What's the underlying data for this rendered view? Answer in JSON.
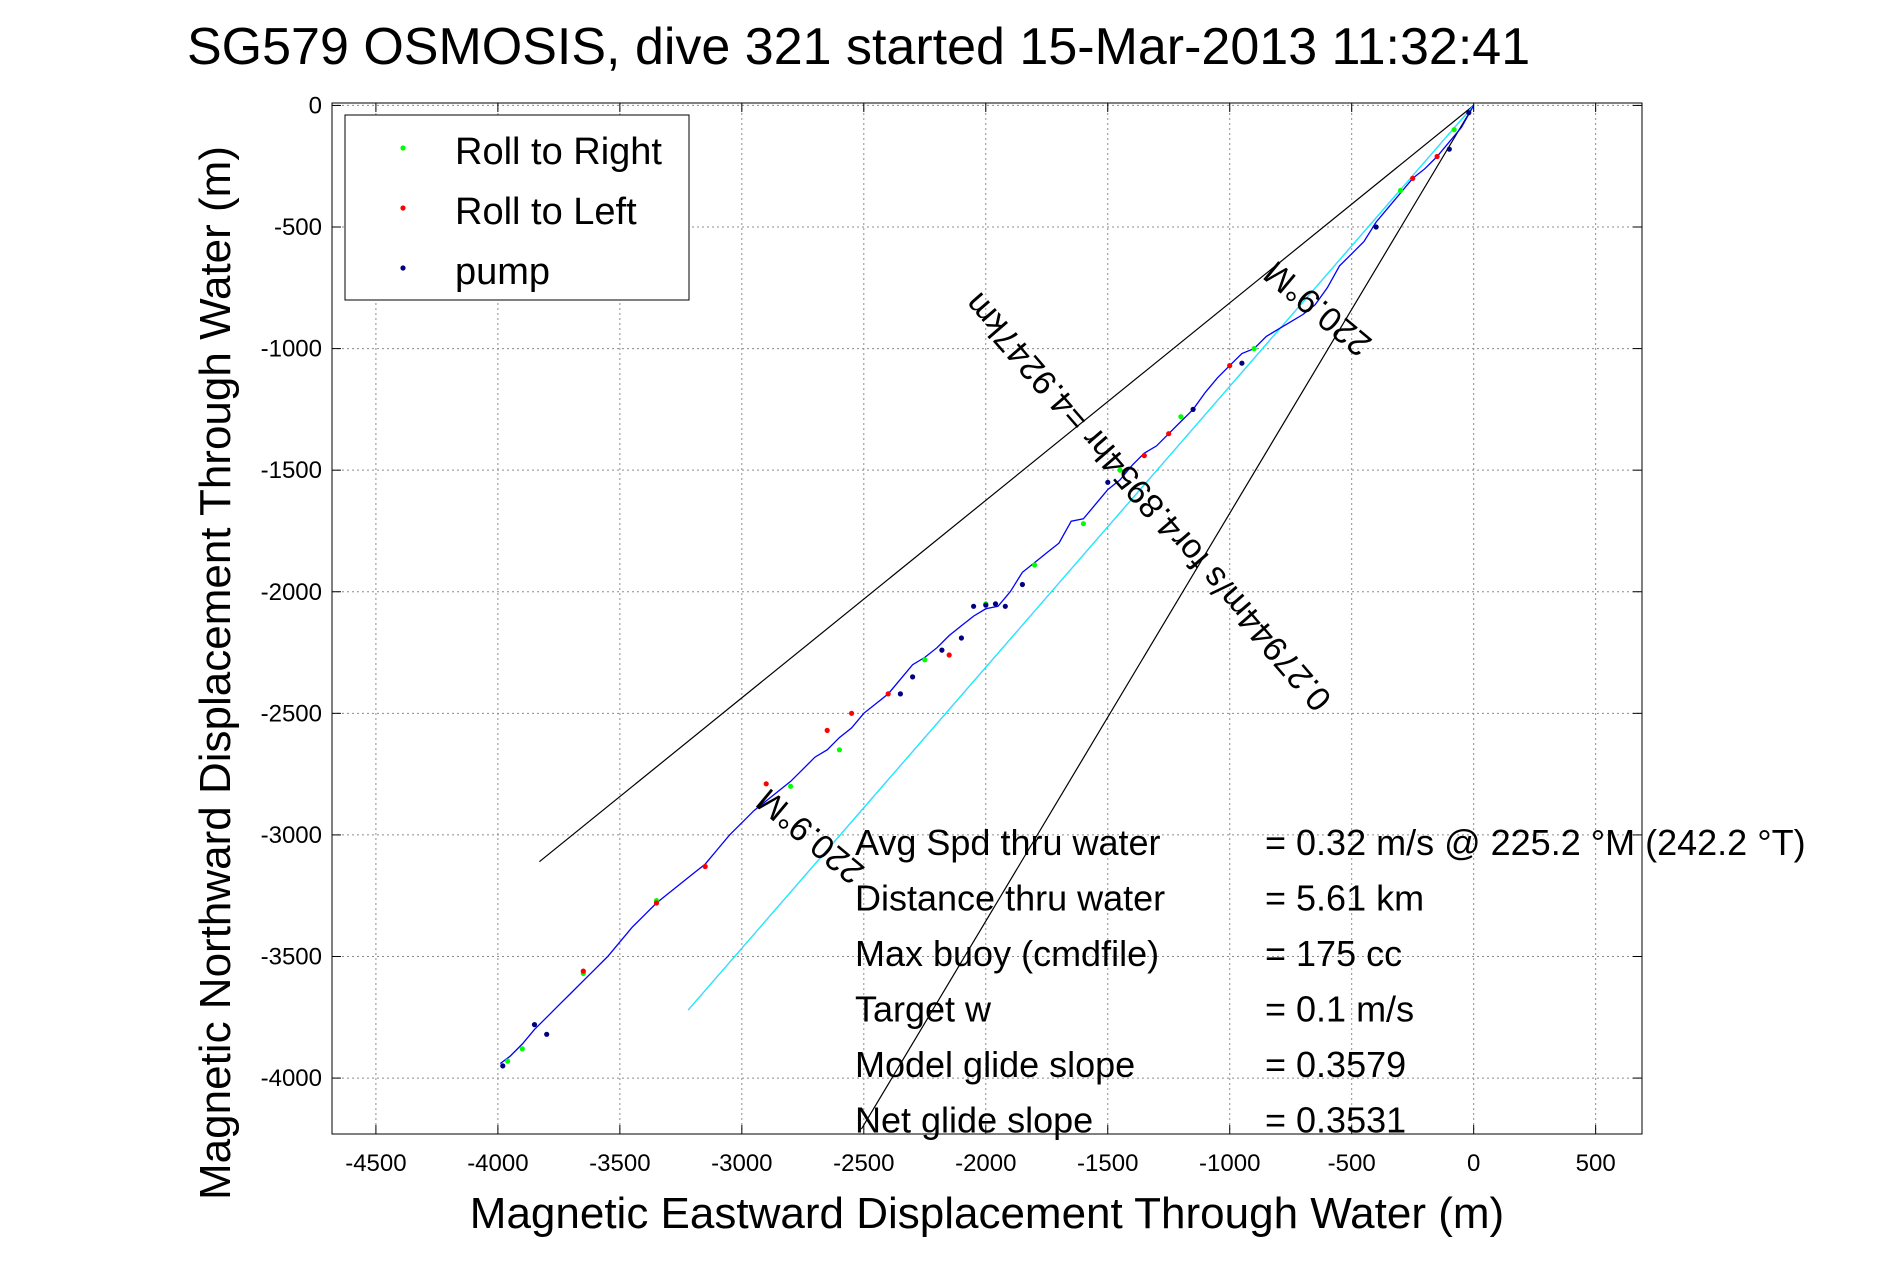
{
  "chart_data": {
    "type": "line",
    "title": "SG579 OSMOSIS, dive 321 started 15-Mar-2013 11:32:41",
    "xlabel": "Magnetic Eastward Displacement Through Water (m)",
    "ylabel": "Magnetic Northward Displacement Through Water (m)",
    "xlim": [
      -4680,
      690
    ],
    "ylim": [
      -4230,
      10
    ],
    "xticks": [
      -4500,
      -4000,
      -3500,
      -3000,
      -2500,
      -2000,
      -1500,
      -1000,
      -500,
      0,
      500
    ],
    "yticks": [
      0,
      -500,
      -1000,
      -1500,
      -2000,
      -2500,
      -3000,
      -3500,
      -4000
    ],
    "grid": true,
    "legend_position": "top-left",
    "legend": [
      {
        "label": "Roll to Right",
        "color": "#00ff00"
      },
      {
        "label": "Roll to Left",
        "color": "#ff0000"
      },
      {
        "label": "pump",
        "color": "#000080"
      }
    ],
    "track": {
      "color": "#0000ff",
      "x": [
        0,
        -50,
        -100,
        -150,
        -200,
        -250,
        -300,
        -350,
        -400,
        -450,
        -500,
        -550,
        -600,
        -650,
        -700,
        -750,
        -800,
        -850,
        -900,
        -950,
        -1000,
        -1050,
        -1100,
        -1150,
        -1200,
        -1250,
        -1300,
        -1350,
        -1400,
        -1450,
        -1500,
        -1550,
        -1600,
        -1650,
        -1700,
        -1750,
        -1800,
        -1850,
        -1900,
        -1950,
        -2000,
        -2050,
        -2100,
        -2150,
        -2200,
        -2250,
        -2300,
        -2350,
        -2400,
        -2450,
        -2500,
        -2550,
        -2600,
        -2650,
        -2700,
        -2750,
        -2800,
        -2850,
        -2900,
        -2950,
        -3000,
        -3050,
        -3100,
        -3150,
        -3200,
        -3250,
        -3300,
        -3350,
        -3400,
        -3450,
        -3500,
        -3550,
        -3600,
        -3650,
        -3700,
        -3750,
        -3800,
        -3850,
        -3900,
        -3950,
        -3990
      ],
      "y": [
        0,
        -90,
        -150,
        -210,
        -260,
        -300,
        -360,
        -420,
        -480,
        -560,
        -610,
        -660,
        -750,
        -820,
        -860,
        -890,
        -920,
        -950,
        -1000,
        -1020,
        -1070,
        -1120,
        -1180,
        -1250,
        -1300,
        -1350,
        -1400,
        -1430,
        -1480,
        -1540,
        -1580,
        -1640,
        -1700,
        -1710,
        -1800,
        -1840,
        -1880,
        -1920,
        -2000,
        -2060,
        -2070,
        -2100,
        -2140,
        -2180,
        -2230,
        -2270,
        -2300,
        -2360,
        -2420,
        -2460,
        -2500,
        -2560,
        -2600,
        -2650,
        -2680,
        -2730,
        -2780,
        -2820,
        -2860,
        -2900,
        -2950,
        -3000,
        -3060,
        -3120,
        -3160,
        -3200,
        -3240,
        -3280,
        -3330,
        -3380,
        -3440,
        -3500,
        -3550,
        -3600,
        -3650,
        -3700,
        -3750,
        -3800,
        -3860,
        -3910,
        -3940
      ]
    },
    "roll_right_points": [
      [
        -80,
        -100
      ],
      [
        -300,
        -350
      ],
      [
        -900,
        -1000
      ],
      [
        -1200,
        -1280
      ],
      [
        -1450,
        -1500
      ],
      [
        -1600,
        -1720
      ],
      [
        -1800,
        -1890
      ],
      [
        -2000,
        -2050
      ],
      [
        -2250,
        -2280
      ],
      [
        -2600,
        -2650
      ],
      [
        -2800,
        -2800
      ],
      [
        -3350,
        -3270
      ],
      [
        -3650,
        -3570
      ],
      [
        -3900,
        -3880
      ],
      [
        -3960,
        -3930
      ]
    ],
    "roll_left_points": [
      [
        -150,
        -210
      ],
      [
        -250,
        -300
      ],
      [
        -1000,
        -1070
      ],
      [
        -1250,
        -1350
      ],
      [
        -1350,
        -1440
      ],
      [
        -2150,
        -2260
      ],
      [
        -2400,
        -2420
      ],
      [
        -2550,
        -2500
      ],
      [
        -2650,
        -2570
      ],
      [
        -2900,
        -2790
      ],
      [
        -3150,
        -3130
      ],
      [
        -3350,
        -3280
      ],
      [
        -3650,
        -3560
      ]
    ],
    "pump_points": [
      [
        -20,
        -30
      ],
      [
        -100,
        -180
      ],
      [
        -400,
        -500
      ],
      [
        -950,
        -1060
      ],
      [
        -1150,
        -1250
      ],
      [
        -1500,
        -1550
      ],
      [
        -1850,
        -1970
      ],
      [
        -1920,
        -2060
      ],
      [
        -1960,
        -2050
      ],
      [
        -2000,
        -2055
      ],
      [
        -2050,
        -2060
      ],
      [
        -2100,
        -2190
      ],
      [
        -2180,
        -2240
      ],
      [
        -2300,
        -2350
      ],
      [
        -2350,
        -2420
      ],
      [
        -3800,
        -3820
      ],
      [
        -3850,
        -3780
      ],
      [
        -3980,
        -3950
      ]
    ],
    "reference_lines": [
      {
        "color": "#000000",
        "x": [
          0,
          -3830
        ],
        "y": [
          0,
          -3110
        ]
      },
      {
        "color": "#000000",
        "x": [
          0,
          -2510
        ],
        "y": [
          0,
          -4210
        ]
      },
      {
        "color": "#ff00ff",
        "x": [
          0,
          -3220
        ],
        "y": [
          0,
          -3720
        ]
      },
      {
        "color": "#00ffff",
        "x": [
          0,
          -3220
        ],
        "y": [
          0,
          -3720
        ]
      }
    ],
    "annotations": [
      {
        "text": "220.9°M",
        "x": -610,
        "y": -800,
        "rotation": 39.8
      },
      {
        "text": "0.27944m/s for4.8954hr =4.9247km",
        "x": -1300,
        "y": -1600,
        "rotation": 49.1
      },
      {
        "text": "220.9°M",
        "x": -2690,
        "y": -2970,
        "rotation": 39.8
      }
    ],
    "stats": [
      {
        "label": "Avg Spd thru water",
        "value": "=  0.32 m/s @ 225.2 °M (242.2 °T)"
      },
      {
        "label": "Distance thru water",
        "value": "=  5.61 km"
      },
      {
        "label": "Max buoy (cmdfile)",
        "value": "= 175 cc"
      },
      {
        "label": "Target w",
        "value": "= 0.1 m/s"
      },
      {
        "label": "Model glide slope",
        "value": "= 0.3579"
      },
      {
        "label": "Net glide slope",
        "value": "= 0.3531"
      }
    ]
  }
}
